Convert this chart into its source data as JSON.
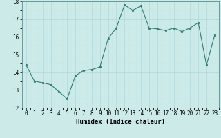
{
  "xlabel": "Humidex (Indice chaleur)",
  "x": [
    0,
    1,
    2,
    3,
    4,
    5,
    6,
    7,
    8,
    9,
    10,
    11,
    12,
    13,
    14,
    15,
    16,
    17,
    18,
    19,
    20,
    21,
    22,
    23
  ],
  "y": [
    14.4,
    13.5,
    13.4,
    13.3,
    12.9,
    12.5,
    13.8,
    14.1,
    14.15,
    14.3,
    15.9,
    16.5,
    17.8,
    17.5,
    17.75,
    16.5,
    16.45,
    16.35,
    16.5,
    16.3,
    16.5,
    16.8,
    14.4,
    16.1
  ],
  "ylim": [
    12,
    18
  ],
  "xlim": [
    -0.5,
    23.5
  ],
  "yticks": [
    12,
    13,
    14,
    15,
    16,
    17,
    18
  ],
  "xticks": [
    0,
    1,
    2,
    3,
    4,
    5,
    6,
    7,
    8,
    9,
    10,
    11,
    12,
    13,
    14,
    15,
    16,
    17,
    18,
    19,
    20,
    21,
    22,
    23
  ],
  "line_color": "#2d7c6e",
  "marker_color": "#2d7c6e",
  "bg_color": "#cceae8",
  "grid_major_color": "#b0d8d5",
  "grid_minor_color": "#c5e3e0",
  "tick_fontsize": 5.5,
  "label_fontsize": 6.5
}
